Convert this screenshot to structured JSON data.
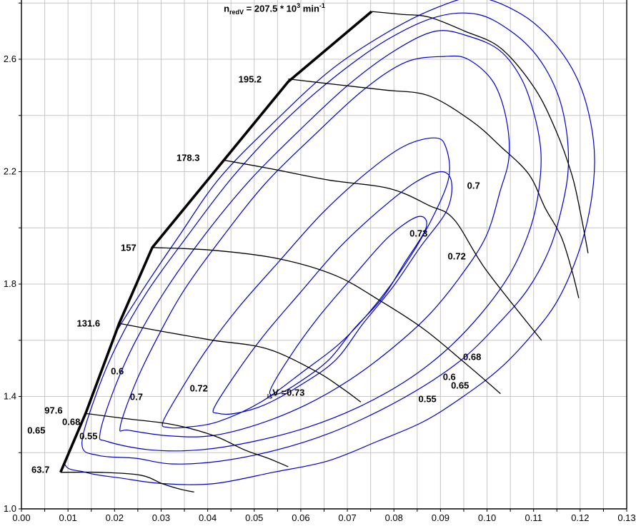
{
  "title": {
    "prefix": "n",
    "sub": "redV",
    "mid": " = 207.5 * 10",
    "sup": "3",
    "unit": " min",
    "unit_sup": "-1"
  },
  "colors": {
    "contour": "#0000cc",
    "speed_line": "#000000",
    "surge_line": "#000000",
    "grid": "#c6c6c6",
    "axis": "#000000",
    "background": "#ffffff",
    "label": "#000000"
  },
  "chart_data": {
    "type": "line",
    "description": "Compressor map: pressure ratio vs corrected mass flow with reduced speed lines (black), surge line (thick black) and isentropic efficiency contours (blue)",
    "xlim": [
      0,
      0.13
    ],
    "ylim": [
      1.0,
      2.81
    ],
    "x_tick_labels": [
      "0.00",
      "0.01",
      "0.02",
      "0.03",
      "0.04",
      "0.05",
      "0.06",
      "0.07",
      "0.08",
      "0.09",
      "0.10",
      "0.11",
      "0.12",
      "0.13"
    ],
    "x_tick_step": 0.01,
    "x_minor_step": 0.005,
    "y_tick_labels": [
      "1.0",
      "1.4",
      "1.8",
      "2.2",
      "2.6"
    ],
    "y_label_step": 0.4,
    "y_grid_step": 0.2,
    "grid": true,
    "legend_position": "none",
    "surge_line": {
      "name": "surge-line",
      "points": [
        [
          0.0084,
          1.13
        ],
        [
          0.0138,
          1.34
        ],
        [
          0.021,
          1.66
        ],
        [
          0.0281,
          1.93
        ],
        [
          0.0573,
          2.52
        ],
        [
          0.0752,
          2.77
        ]
      ]
    },
    "speed_lines": [
      {
        "label": "63.7",
        "label_pos": [
          0.0041,
          1.14
        ],
        "points": [
          [
            0.0084,
            1.13
          ],
          [
            0.0169,
            1.13
          ],
          [
            0.0256,
            1.12
          ],
          [
            0.0302,
            1.09
          ],
          [
            0.0341,
            1.07
          ],
          [
            0.0371,
            1.06
          ]
        ]
      },
      {
        "label": "97.6",
        "label_pos": [
          0.0069,
          1.35
        ],
        "points": [
          [
            0.0135,
            1.34
          ],
          [
            0.023,
            1.32
          ],
          [
            0.0325,
            1.3
          ],
          [
            0.0414,
            1.26
          ],
          [
            0.0479,
            1.21
          ],
          [
            0.053,
            1.18
          ],
          [
            0.0573,
            1.15
          ]
        ]
      },
      {
        "label": "131.6",
        "label_pos": [
          0.0144,
          1.66
        ],
        "points": [
          [
            0.021,
            1.66
          ],
          [
            0.0307,
            1.63
          ],
          [
            0.0411,
            1.6
          ],
          [
            0.0527,
            1.57
          ],
          [
            0.0632,
            1.49
          ],
          [
            0.0688,
            1.43
          ],
          [
            0.0729,
            1.38
          ]
        ]
      },
      {
        "label": "157",
        "label_pos": [
          0.023,
          1.93
        ],
        "points": [
          [
            0.0281,
            1.93
          ],
          [
            0.0414,
            1.92
          ],
          [
            0.0553,
            1.89
          ],
          [
            0.0675,
            1.83
          ],
          [
            0.0771,
            1.74
          ],
          [
            0.0864,
            1.64
          ],
          [
            0.0952,
            1.52
          ],
          [
            0.1029,
            1.41
          ]
        ]
      },
      {
        "label": "178.3",
        "label_pos": [
          0.0358,
          2.25
        ],
        "points": [
          [
            0.0437,
            2.24
          ],
          [
            0.0537,
            2.21
          ],
          [
            0.066,
            2.17
          ],
          [
            0.079,
            2.14
          ],
          [
            0.0875,
            2.08
          ],
          [
            0.0929,
            2.03
          ],
          [
            0.0998,
            1.85
          ],
          [
            0.1117,
            1.6
          ]
        ]
      },
      {
        "label": "195.2",
        "label_pos": [
          0.0491,
          2.53
        ],
        "points": [
          [
            0.0573,
            2.53
          ],
          [
            0.0675,
            2.51
          ],
          [
            0.0783,
            2.49
          ],
          [
            0.0875,
            2.47
          ],
          [
            0.0967,
            2.38
          ],
          [
            0.1029,
            2.29
          ],
          [
            0.109,
            2.19
          ],
          [
            0.1125,
            2.07
          ],
          [
            0.1159,
            1.97
          ],
          [
            0.1182,
            1.85
          ],
          [
            0.1197,
            1.75
          ]
        ]
      },
      {
        "label": "207.5",
        "label_pos": null,
        "points": [
          [
            0.0752,
            2.77
          ],
          [
            0.0814,
            2.76
          ],
          [
            0.0875,
            2.75
          ],
          [
            0.0952,
            2.7
          ],
          [
            0.1029,
            2.64
          ],
          [
            0.1101,
            2.5
          ],
          [
            0.1147,
            2.35
          ],
          [
            0.1182,
            2.19
          ],
          [
            0.12,
            2.06
          ],
          [
            0.1217,
            1.91
          ]
        ]
      }
    ],
    "efficiency_contours": [
      {
        "level": "0.55",
        "points": [
          [
            0.0092,
            1.17
          ],
          [
            0.013,
            1.36
          ],
          [
            0.0184,
            1.57
          ],
          [
            0.0253,
            1.76
          ],
          [
            0.0338,
            1.97
          ],
          [
            0.0427,
            2.18
          ],
          [
            0.0545,
            2.38
          ],
          [
            0.0663,
            2.56
          ],
          [
            0.078,
            2.69
          ],
          [
            0.0887,
            2.78
          ],
          [
            0.0979,
            2.82
          ],
          [
            0.1074,
            2.76
          ],
          [
            0.1143,
            2.66
          ],
          [
            0.1194,
            2.53
          ],
          [
            0.1222,
            2.38
          ],
          [
            0.1231,
            2.23
          ],
          [
            0.122,
            2.06
          ],
          [
            0.1194,
            1.9
          ],
          [
            0.1151,
            1.74
          ],
          [
            0.1097,
            1.62
          ],
          [
            0.1028,
            1.5
          ],
          [
            0.0949,
            1.4
          ],
          [
            0.0863,
            1.31
          ],
          [
            0.0764,
            1.24
          ],
          [
            0.0657,
            1.17
          ],
          [
            0.054,
            1.13
          ],
          [
            0.0414,
            1.09
          ],
          [
            0.0304,
            1.09
          ],
          [
            0.0212,
            1.11
          ],
          [
            0.0138,
            1.13
          ]
        ]
      },
      {
        "level": "0.6",
        "points": [
          [
            0.013,
            1.23
          ],
          [
            0.0161,
            1.41
          ],
          [
            0.0207,
            1.59
          ],
          [
            0.0269,
            1.77
          ],
          [
            0.0356,
            1.97
          ],
          [
            0.0453,
            2.18
          ],
          [
            0.0565,
            2.38
          ],
          [
            0.0675,
            2.54
          ],
          [
            0.0786,
            2.67
          ],
          [
            0.089,
            2.75
          ],
          [
            0.0979,
            2.76
          ],
          [
            0.1051,
            2.7
          ],
          [
            0.1108,
            2.61
          ],
          [
            0.1151,
            2.48
          ],
          [
            0.1171,
            2.34
          ],
          [
            0.1174,
            2.2
          ],
          [
            0.1159,
            2.06
          ],
          [
            0.1133,
            1.92
          ],
          [
            0.1087,
            1.78
          ],
          [
            0.1025,
            1.66
          ],
          [
            0.0952,
            1.54
          ],
          [
            0.0867,
            1.44
          ],
          [
            0.077,
            1.35
          ],
          [
            0.0663,
            1.27
          ],
          [
            0.0549,
            1.21
          ],
          [
            0.0427,
            1.17
          ],
          [
            0.0322,
            1.16
          ],
          [
            0.0246,
            1.18
          ],
          [
            0.0166,
            1.19
          ]
        ]
      },
      {
        "level": "0.65",
        "points": [
          [
            0.0169,
            1.27
          ],
          [
            0.02,
            1.43
          ],
          [
            0.0246,
            1.6
          ],
          [
            0.031,
            1.78
          ],
          [
            0.0396,
            1.98
          ],
          [
            0.0491,
            2.17
          ],
          [
            0.0599,
            2.35
          ],
          [
            0.0703,
            2.51
          ],
          [
            0.0801,
            2.63
          ],
          [
            0.089,
            2.7
          ],
          [
            0.0964,
            2.68
          ],
          [
            0.1028,
            2.63
          ],
          [
            0.1074,
            2.53
          ],
          [
            0.1102,
            2.4
          ],
          [
            0.1116,
            2.26
          ],
          [
            0.1108,
            2.1
          ],
          [
            0.1087,
            1.97
          ],
          [
            0.1047,
            1.83
          ],
          [
            0.0985,
            1.69
          ],
          [
            0.0909,
            1.56
          ],
          [
            0.0821,
            1.45
          ],
          [
            0.0721,
            1.36
          ],
          [
            0.0614,
            1.29
          ],
          [
            0.0499,
            1.24
          ],
          [
            0.0384,
            1.21
          ],
          [
            0.0276,
            1.21
          ],
          [
            0.0184,
            1.24
          ]
        ]
      },
      {
        "level": "0.68",
        "points": [
          [
            0.0212,
            1.29
          ],
          [
            0.0243,
            1.44
          ],
          [
            0.0289,
            1.6
          ],
          [
            0.035,
            1.78
          ],
          [
            0.0433,
            1.97
          ],
          [
            0.0525,
            2.16
          ],
          [
            0.0629,
            2.33
          ],
          [
            0.0734,
            2.49
          ],
          [
            0.0826,
            2.59
          ],
          [
            0.0909,
            2.61
          ],
          [
            0.0959,
            2.6
          ],
          [
            0.1013,
            2.52
          ],
          [
            0.1041,
            2.39
          ],
          [
            0.1047,
            2.25
          ],
          [
            0.1028,
            2.13
          ],
          [
            0.0998,
            1.97
          ],
          [
            0.0944,
            1.83
          ],
          [
            0.0875,
            1.69
          ],
          [
            0.0795,
            1.57
          ],
          [
            0.0706,
            1.46
          ],
          [
            0.0611,
            1.37
          ],
          [
            0.0506,
            1.3
          ],
          [
            0.0407,
            1.26
          ],
          [
            0.0315,
            1.26
          ],
          [
            0.023,
            1.28
          ]
        ]
      },
      {
        "level": "0.7",
        "points": [
          [
            0.0304,
            1.31
          ],
          [
            0.0345,
            1.43
          ],
          [
            0.0399,
            1.57
          ],
          [
            0.0468,
            1.72
          ],
          [
            0.0553,
            1.88
          ],
          [
            0.0645,
            2.05
          ],
          [
            0.0737,
            2.19
          ],
          [
            0.0821,
            2.29
          ],
          [
            0.089,
            2.32
          ],
          [
            0.0913,
            2.28
          ],
          [
            0.0918,
            2.18
          ],
          [
            0.0887,
            2.05
          ],
          [
            0.0836,
            1.9
          ],
          [
            0.0767,
            1.74
          ],
          [
            0.0691,
            1.6
          ],
          [
            0.0606,
            1.49
          ],
          [
            0.0514,
            1.38
          ],
          [
            0.0422,
            1.31
          ],
          [
            0.035,
            1.29
          ],
          [
            0.0315,
            1.29
          ]
        ]
      },
      {
        "level": "0.72",
        "points": [
          [
            0.0414,
            1.36
          ],
          [
            0.046,
            1.48
          ],
          [
            0.0522,
            1.62
          ],
          [
            0.0599,
            1.77
          ],
          [
            0.0683,
            1.93
          ],
          [
            0.0767,
            2.06
          ],
          [
            0.0844,
            2.16
          ],
          [
            0.0902,
            2.2
          ],
          [
            0.0924,
            2.16
          ],
          [
            0.0913,
            2.06
          ],
          [
            0.0856,
            1.93
          ],
          [
            0.0798,
            1.79
          ],
          [
            0.0734,
            1.66
          ],
          [
            0.0675,
            1.53
          ],
          [
            0.0599,
            1.44
          ],
          [
            0.0522,
            1.37
          ],
          [
            0.046,
            1.34
          ],
          [
            0.0422,
            1.34
          ]
        ]
      },
      {
        "level": "0.73",
        "points": [
          [
            0.0534,
            1.42
          ],
          [
            0.0576,
            1.54
          ],
          [
            0.0637,
            1.68
          ],
          [
            0.0714,
            1.83
          ],
          [
            0.079,
            1.97
          ],
          [
            0.0852,
            2.04
          ],
          [
            0.0869,
            2.0
          ],
          [
            0.0821,
            1.87
          ],
          [
            0.0775,
            1.75
          ],
          [
            0.0714,
            1.64
          ],
          [
            0.066,
            1.53
          ],
          [
            0.0596,
            1.45
          ],
          [
            0.0553,
            1.41
          ]
        ]
      }
    ],
    "efficiency_labels": [
      {
        "text": "0.65",
        "flow": 0.0032,
        "pr": 1.28
      },
      {
        "text": "0.68",
        "flow": 0.0107,
        "pr": 1.31
      },
      {
        "text": "0.55",
        "flow": 0.0144,
        "pr": 1.26
      },
      {
        "text": "0.6",
        "flow": 0.0206,
        "pr": 1.49
      },
      {
        "text": "0.7",
        "flow": 0.0247,
        "pr": 1.4
      },
      {
        "text": "0.72",
        "flow": 0.0381,
        "pr": 1.43
      },
      {
        "sub": "is",
        "text": "V =0.73",
        "flow": 0.0568,
        "pr": 1.41
      },
      {
        "text": "0.55",
        "flow": 0.0872,
        "pr": 1.39
      },
      {
        "text": "0.6",
        "flow": 0.0919,
        "pr": 1.47
      },
      {
        "text": "0.65",
        "flow": 0.0942,
        "pr": 1.44
      },
      {
        "text": "0.68",
        "flow": 0.0968,
        "pr": 1.54
      },
      {
        "text": "0.72",
        "flow": 0.0935,
        "pr": 1.9
      },
      {
        "text": "0.73",
        "flow": 0.0853,
        "pr": 1.98
      },
      {
        "text": "0.7",
        "flow": 0.0971,
        "pr": 2.15
      }
    ]
  }
}
